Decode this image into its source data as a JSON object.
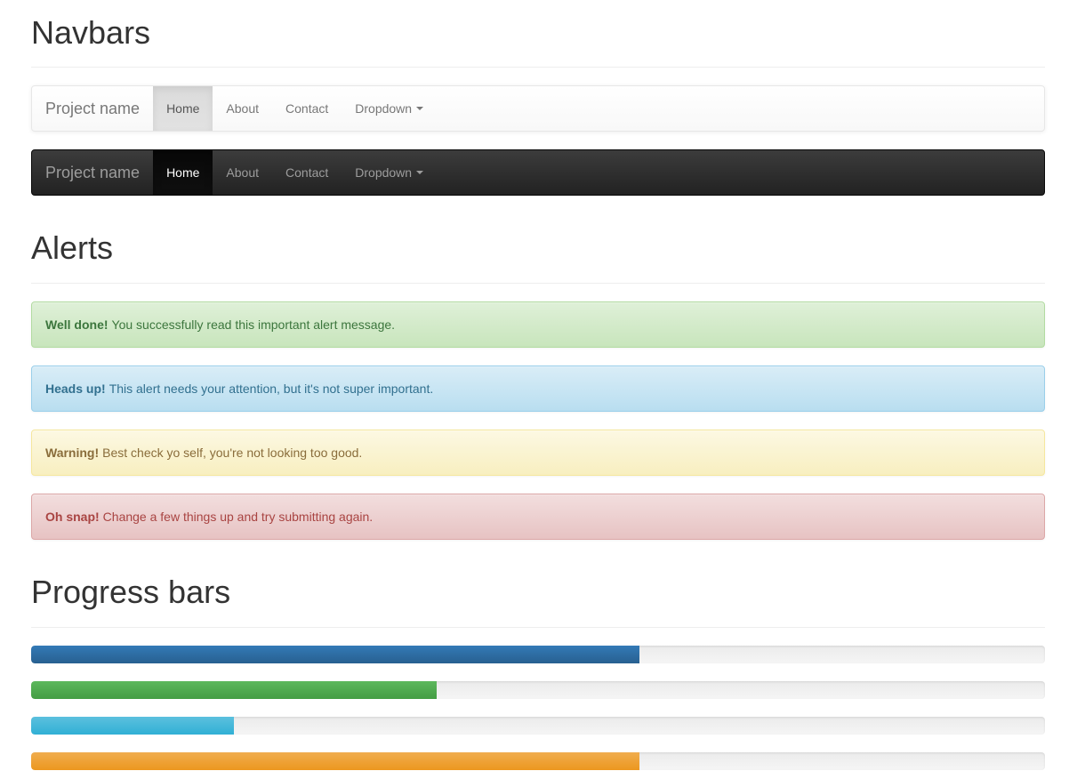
{
  "sections": {
    "navbars_title": "Navbars",
    "alerts_title": "Alerts",
    "progress_title": "Progress bars"
  },
  "navbar_default": {
    "brand": "Project name",
    "items": [
      {
        "label": "Home",
        "active": true
      },
      {
        "label": "About"
      },
      {
        "label": "Contact"
      },
      {
        "label": "Dropdown",
        "dropdown": true
      }
    ]
  },
  "navbar_inverse": {
    "brand": "Project name",
    "items": [
      {
        "label": "Home",
        "active": true
      },
      {
        "label": "About"
      },
      {
        "label": "Contact"
      },
      {
        "label": "Dropdown",
        "dropdown": true
      }
    ]
  },
  "alerts": [
    {
      "type": "success",
      "strong": "Well done!",
      "text": "You successfully read this important alert message.",
      "color": "#3c763d"
    },
    {
      "type": "info",
      "strong": "Heads up!",
      "text": "This alert needs your attention, but it's not super important.",
      "color": "#31708f"
    },
    {
      "type": "warning",
      "strong": "Warning!",
      "text": "Best check yo self, you're not looking too good.",
      "color": "#8a6d3b"
    },
    {
      "type": "danger",
      "strong": "Oh snap!",
      "text": "Change a few things up and try submitting again.",
      "color": "#a94442"
    }
  ],
  "progress_bars": [
    {
      "type": "primary",
      "percent": 60,
      "color": "#337ab7"
    },
    {
      "type": "success",
      "percent": 40,
      "color": "#5cb85c"
    },
    {
      "type": "info",
      "percent": 20,
      "color": "#5bc0de"
    },
    {
      "type": "warning",
      "percent": 60,
      "color": "#f0ad4e"
    }
  ]
}
